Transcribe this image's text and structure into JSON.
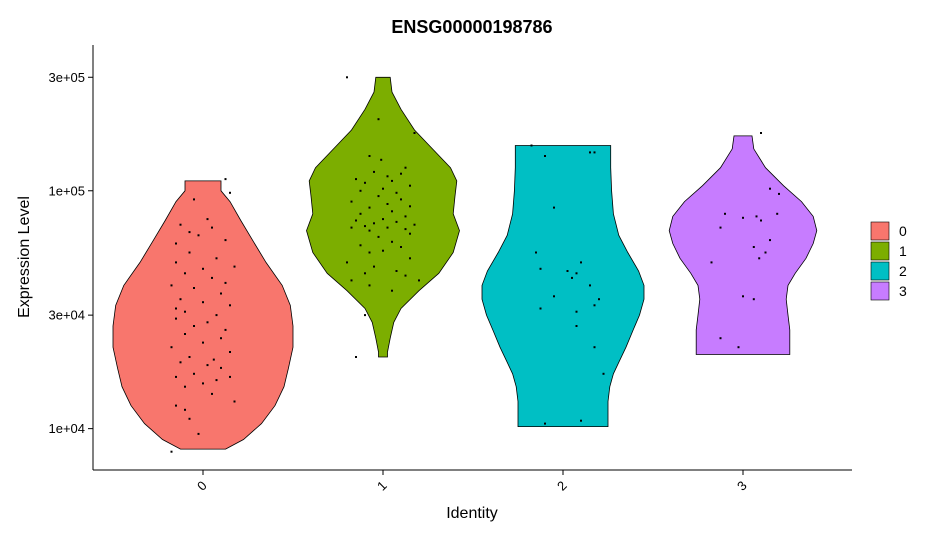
{
  "chart_data": {
    "type": "violin",
    "title": "ENSG00000198786",
    "xlabel": "Identity",
    "ylabel": "Expression Level",
    "y_scale": "log10",
    "ylim": [
      6700,
      410000
    ],
    "y_ticks": [
      {
        "value": 10000,
        "label": "1e+04"
      },
      {
        "value": 30000,
        "label": "3e+04"
      },
      {
        "value": 100000,
        "label": "1e+05"
      },
      {
        "value": 300000,
        "label": "3e+05"
      }
    ],
    "categories": [
      "0",
      "1",
      "2",
      "3"
    ],
    "legend_position": "right",
    "series": [
      {
        "name": "0",
        "color": "#F8766D",
        "min": 8200,
        "max": 110000,
        "density": [
          [
            8200,
            0.25
          ],
          [
            9000,
            0.45
          ],
          [
            10500,
            0.65
          ],
          [
            12500,
            0.8
          ],
          [
            15000,
            0.9
          ],
          [
            18000,
            0.95
          ],
          [
            22000,
            1.0
          ],
          [
            27000,
            1.0
          ],
          [
            33000,
            0.97
          ],
          [
            40000,
            0.88
          ],
          [
            50000,
            0.7
          ],
          [
            62000,
            0.55
          ],
          [
            75000,
            0.42
          ],
          [
            90000,
            0.3
          ],
          [
            100000,
            0.2
          ],
          [
            110000,
            0.2
          ]
        ],
        "points": [
          [
            -0.35,
            8000
          ],
          [
            -0.05,
            9500
          ],
          [
            -0.15,
            11000
          ],
          [
            -0.2,
            12000
          ],
          [
            -0.3,
            12500
          ],
          [
            0.35,
            13000
          ],
          [
            0.1,
            14000
          ],
          [
            -0.2,
            15000
          ],
          [
            0.0,
            15500
          ],
          [
            0.15,
            16000
          ],
          [
            -0.3,
            16500
          ],
          [
            0.3,
            16500
          ],
          [
            -0.1,
            17000
          ],
          [
            0.2,
            18000
          ],
          [
            0.05,
            18500
          ],
          [
            -0.25,
            19000
          ],
          [
            0.12,
            19500
          ],
          [
            -0.15,
            20000
          ],
          [
            0.3,
            21000
          ],
          [
            -0.35,
            22000
          ],
          [
            0.0,
            23000
          ],
          [
            0.2,
            24000
          ],
          [
            -0.2,
            25000
          ],
          [
            0.25,
            26000
          ],
          [
            -0.1,
            27000
          ],
          [
            0.05,
            28000
          ],
          [
            -0.3,
            29000
          ],
          [
            0.15,
            30000
          ],
          [
            -0.2,
            31000
          ],
          [
            -0.3,
            32000
          ],
          [
            0.3,
            33000
          ],
          [
            0.0,
            34000
          ],
          [
            -0.25,
            35000
          ],
          [
            0.2,
            37000
          ],
          [
            -0.1,
            39000
          ],
          [
            -0.35,
            40000
          ],
          [
            0.25,
            41000
          ],
          [
            0.1,
            43000
          ],
          [
            -0.2,
            45000
          ],
          [
            0.0,
            47000
          ],
          [
            0.35,
            48000
          ],
          [
            -0.3,
            50000
          ],
          [
            0.15,
            52000
          ],
          [
            -0.15,
            55000
          ],
          [
            -0.3,
            60000
          ],
          [
            0.25,
            62000
          ],
          [
            -0.05,
            65000
          ],
          [
            -0.15,
            67000
          ],
          [
            0.1,
            70000
          ],
          [
            -0.25,
            72000
          ],
          [
            0.05,
            76000
          ],
          [
            -0.1,
            92000
          ],
          [
            0.3,
            98000
          ],
          [
            0.25,
            112000
          ]
        ]
      },
      {
        "name": "1",
        "color": "#7CAE00",
        "min": 20000,
        "max": 300000,
        "density": [
          [
            20000,
            0.05
          ],
          [
            21000,
            0.05
          ],
          [
            24000,
            0.08
          ],
          [
            28000,
            0.12
          ],
          [
            32000,
            0.2
          ],
          [
            38000,
            0.4
          ],
          [
            45000,
            0.62
          ],
          [
            55000,
            0.78
          ],
          [
            68000,
            0.85
          ],
          [
            80000,
            0.78
          ],
          [
            95000,
            0.8
          ],
          [
            110000,
            0.82
          ],
          [
            125000,
            0.75
          ],
          [
            150000,
            0.55
          ],
          [
            180000,
            0.35
          ],
          [
            220000,
            0.2
          ],
          [
            260000,
            0.1
          ],
          [
            300000,
            0.08
          ]
        ],
        "points": [
          [
            -0.4,
            300000
          ],
          [
            -0.05,
            200000
          ],
          [
            0.35,
            175000
          ],
          [
            -0.15,
            140000
          ],
          [
            -0.02,
            135000
          ],
          [
            0.25,
            125000
          ],
          [
            -0.1,
            120000
          ],
          [
            0.2,
            118000
          ],
          [
            0.05,
            115000
          ],
          [
            -0.3,
            112000
          ],
          [
            0.1,
            110000
          ],
          [
            -0.2,
            108000
          ],
          [
            0.3,
            105000
          ],
          [
            0.0,
            102000
          ],
          [
            -0.25,
            100000
          ],
          [
            0.15,
            98000
          ],
          [
            -0.05,
            95000
          ],
          [
            0.2,
            92000
          ],
          [
            -0.35,
            90000
          ],
          [
            0.05,
            88000
          ],
          [
            0.3,
            86000
          ],
          [
            -0.15,
            85000
          ],
          [
            0.1,
            82000
          ],
          [
            -0.25,
            80000
          ],
          [
            0.25,
            78000
          ],
          [
            0.0,
            76000
          ],
          [
            -0.3,
            75000
          ],
          [
            0.15,
            74000
          ],
          [
            -0.1,
            73000
          ],
          [
            0.35,
            72000
          ],
          [
            -0.2,
            71000
          ],
          [
            0.05,
            70000
          ],
          [
            -0.35,
            70000
          ],
          [
            0.25,
            69000
          ],
          [
            -0.15,
            68000
          ],
          [
            0.3,
            66000
          ],
          [
            -0.05,
            64000
          ],
          [
            0.1,
            61000
          ],
          [
            -0.25,
            59000
          ],
          [
            0.2,
            58000
          ],
          [
            0.0,
            56000
          ],
          [
            -0.15,
            55000
          ],
          [
            0.3,
            52000
          ],
          [
            -0.4,
            50000
          ],
          [
            -0.1,
            48000
          ],
          [
            0.15,
            46000
          ],
          [
            -0.2,
            45000
          ],
          [
            0.25,
            44000
          ],
          [
            -0.35,
            42000
          ],
          [
            0.4,
            42000
          ],
          [
            -0.15,
            40000
          ],
          [
            0.1,
            38000
          ],
          [
            -0.2,
            30000
          ],
          [
            -0.3,
            20000
          ]
        ]
      },
      {
        "name": "2",
        "color": "#00BFC4",
        "min": 10200,
        "max": 155000,
        "density": [
          [
            10200,
            0.5
          ],
          [
            11000,
            0.5
          ],
          [
            13000,
            0.5
          ],
          [
            15000,
            0.52
          ],
          [
            17000,
            0.56
          ],
          [
            19000,
            0.62
          ],
          [
            22000,
            0.7
          ],
          [
            26000,
            0.78
          ],
          [
            30000,
            0.85
          ],
          [
            35000,
            0.9
          ],
          [
            40000,
            0.9
          ],
          [
            46000,
            0.84
          ],
          [
            55000,
            0.72
          ],
          [
            65000,
            0.62
          ],
          [
            80000,
            0.56
          ],
          [
            100000,
            0.54
          ],
          [
            125000,
            0.53
          ],
          [
            155000,
            0.53
          ]
        ],
        "points": [
          [
            -0.35,
            155000
          ],
          [
            0.3,
            145000
          ],
          [
            0.35,
            145000
          ],
          [
            -0.2,
            140000
          ],
          [
            -0.1,
            85000
          ],
          [
            -0.3,
            55000
          ],
          [
            0.2,
            50000
          ],
          [
            -0.25,
            47000
          ],
          [
            0.05,
            46000
          ],
          [
            0.15,
            45000
          ],
          [
            0.1,
            43000
          ],
          [
            0.3,
            40000
          ],
          [
            -0.1,
            36000
          ],
          [
            0.35,
            33000
          ],
          [
            0.15,
            31000
          ],
          [
            0.4,
            35000
          ],
          [
            -0.25,
            32000
          ],
          [
            0.15,
            27000
          ],
          [
            0.35,
            22000
          ],
          [
            0.45,
            17000
          ],
          [
            -0.2,
            10500
          ],
          [
            0.2,
            10800
          ]
        ]
      },
      {
        "name": "3",
        "color": "#C77CFF",
        "min": 20500,
        "max": 170000,
        "density": [
          [
            20500,
            0.52
          ],
          [
            21000,
            0.52
          ],
          [
            23000,
            0.52
          ],
          [
            26000,
            0.52
          ],
          [
            30000,
            0.5
          ],
          [
            35000,
            0.48
          ],
          [
            40000,
            0.5
          ],
          [
            45000,
            0.58
          ],
          [
            52000,
            0.7
          ],
          [
            60000,
            0.78
          ],
          [
            68000,
            0.82
          ],
          [
            78000,
            0.78
          ],
          [
            90000,
            0.65
          ],
          [
            105000,
            0.45
          ],
          [
            125000,
            0.25
          ],
          [
            150000,
            0.12
          ],
          [
            170000,
            0.1
          ]
        ],
        "points": [
          [
            0.2,
            175000
          ],
          [
            0.3,
            102000
          ],
          [
            0.4,
            97000
          ],
          [
            -0.2,
            80000
          ],
          [
            0.15,
            78000
          ],
          [
            0.38,
            80000
          ],
          [
            0.0,
            77000
          ],
          [
            0.2,
            75000
          ],
          [
            -0.25,
            70000
          ],
          [
            0.3,
            62000
          ],
          [
            0.12,
            58000
          ],
          [
            0.25,
            55000
          ],
          [
            0.18,
            52000
          ],
          [
            -0.35,
            50000
          ],
          [
            0.0,
            36000
          ],
          [
            0.12,
            35000
          ],
          [
            -0.25,
            24000
          ],
          [
            -0.05,
            22000
          ]
        ]
      }
    ]
  }
}
